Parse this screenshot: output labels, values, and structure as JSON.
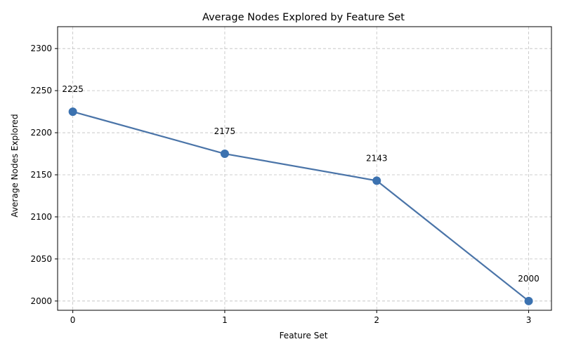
{
  "chart_data": {
    "type": "line",
    "title": "Average Nodes Explored by Feature Set",
    "xlabel": "Feature Set",
    "ylabel": "Average Nodes Explored",
    "x": [
      0,
      1,
      2,
      3
    ],
    "x_ticks": [
      "0",
      "1",
      "2",
      "3"
    ],
    "series": [
      {
        "values": [
          2225,
          2175,
          2143,
          2000
        ]
      }
    ],
    "data_labels": [
      "2225",
      "2175",
      "2143",
      "2000"
    ],
    "xlim": [
      -0.1,
      3.15
    ],
    "ylim": [
      1989,
      2326
    ],
    "y_ticks": [
      "2000",
      "2050",
      "2100",
      "2150",
      "2200",
      "2250",
      "2300"
    ],
    "grid": true,
    "line_color": "#4a74a8",
    "marker_color": "#3c72b0"
  }
}
